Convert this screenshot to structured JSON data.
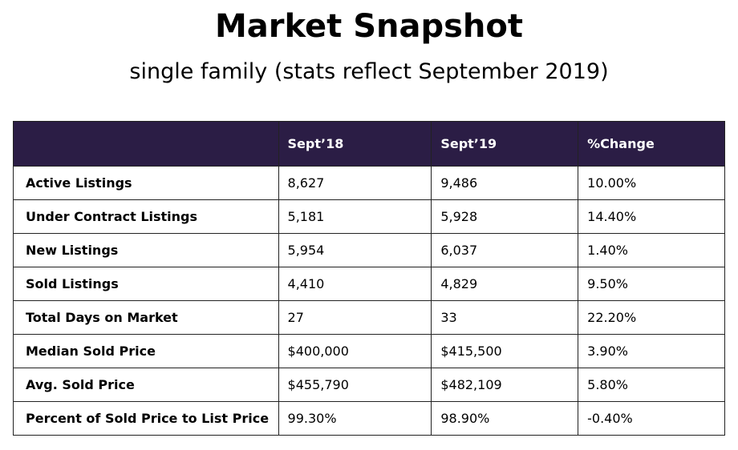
{
  "title": "Market Snapshot",
  "subtitle": "single family (stats reflect September 2019)",
  "table": {
    "headers": [
      "",
      "Sept’18",
      "Sept’19",
      "%Change"
    ],
    "rows": [
      [
        "Active Listings",
        "8,627",
        "9,486",
        "10.00%"
      ],
      [
        "Under Contract Listings",
        "5,181",
        "5,928",
        "14.40%"
      ],
      [
        "New Listings",
        "5,954",
        "6,037",
        "1.40%"
      ],
      [
        "Sold Listings",
        "4,410",
        "4,829",
        "9.50%"
      ],
      [
        "Total Days on Market",
        "27",
        "33",
        "22.20%"
      ],
      [
        "Median Sold Price",
        "$400,000",
        "$415,500",
        "3.90%"
      ],
      [
        "Avg. Sold Price",
        "$455,790",
        "$482,109",
        "5.80%"
      ],
      [
        "Percent of Sold Price to List Price",
        "99.30%",
        "98.90%",
        "-0.40%"
      ]
    ]
  },
  "colors": {
    "header_bg": "#2b1d45",
    "header_text": "#ffffff"
  }
}
